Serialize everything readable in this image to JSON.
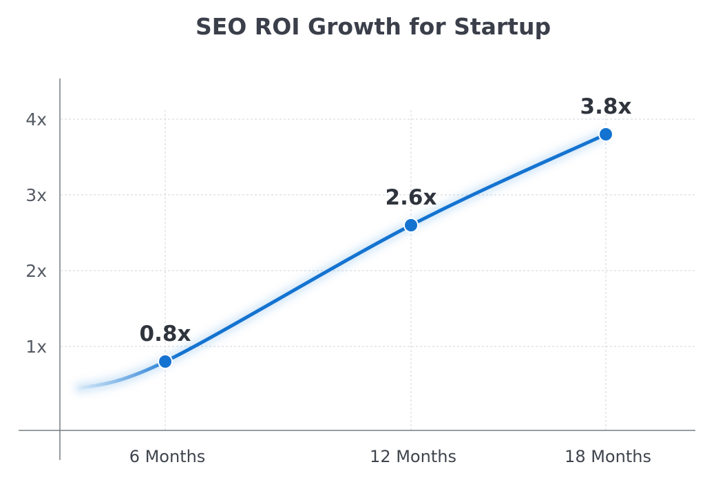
{
  "chart_data": {
    "type": "line",
    "title": "SEO ROI Growth for Startup",
    "xlabel": "",
    "ylabel": "",
    "categories": [
      "6 Months",
      "12 Months",
      "18 Months"
    ],
    "series": [
      {
        "values": [
          0.8,
          2.6,
          3.8
        ],
        "data_labels": [
          "0.8x",
          "2.6x",
          "3.8x"
        ]
      }
    ],
    "y_ticks": [
      1,
      2,
      3,
      4
    ],
    "y_tick_labels": [
      "1x",
      "2x",
      "3x",
      "4x"
    ],
    "ylim": [
      0,
      4.5
    ],
    "grid": true,
    "smooth": true,
    "legend": "none",
    "colors": {
      "line": "#1473d0",
      "grid": "#cfd3d8",
      "axis": "#777b82"
    }
  }
}
